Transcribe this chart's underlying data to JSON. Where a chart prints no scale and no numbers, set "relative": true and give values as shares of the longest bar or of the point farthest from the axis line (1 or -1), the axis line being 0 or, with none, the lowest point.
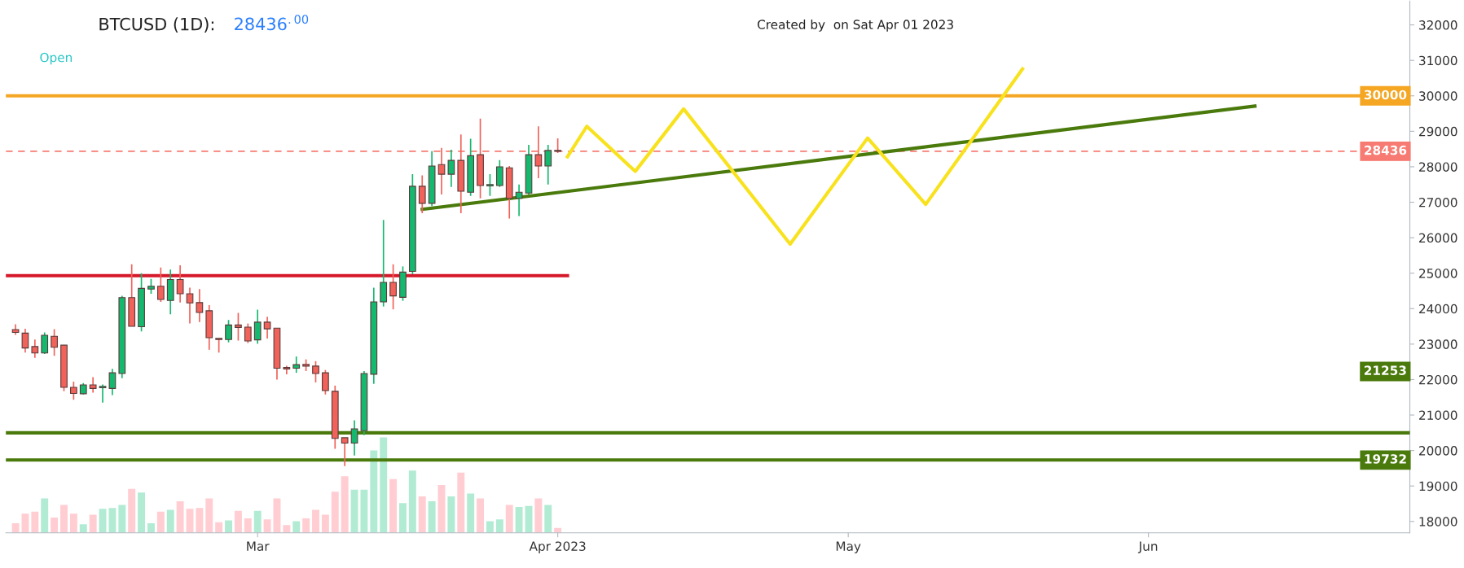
{
  "chart_data": [
    {
      "type": "candlestick",
      "title": "BTCUSD (1D):",
      "annotations": [
        "28436$^{.00}$",
        "Open",
        "Created by  on Sat Apr 01 2023",
        "21253"
      ],
      "xlim": [
        "2023-02-03",
        "2023-06-28"
      ],
      "xticks": [
        {
          "value": "2023-03-01",
          "label": "Mar"
        },
        {
          "value": "2023-04-01",
          "label": "Apr 2023"
        },
        {
          "value": "2023-05-01",
          "label": "May"
        },
        {
          "value": "2023-06-01",
          "label": "Jun"
        }
      ],
      "ylim": [
        17680,
        32670
      ],
      "yticks": [
        18000,
        19000,
        20000,
        21000,
        22000,
        23000,
        24000,
        25000,
        26000,
        27000,
        28000,
        29000,
        30000,
        31000,
        32000
      ],
      "grid": false,
      "legend": false,
      "ref_lines": [
        {
          "axis": "y",
          "value": 30000,
          "label": "30000",
          "color": "#f5a623",
          "line_style": "solid"
        },
        {
          "axis": "y",
          "value": 28436,
          "label": "28436",
          "color": "#f77b72",
          "line_style": "dashed"
        },
        {
          "axis": "y",
          "value": 20500,
          "color": "#4a7a0c",
          "line_style": "solid"
        },
        {
          "axis": "y",
          "value": 19732,
          "label": "19732",
          "color": "#4a7a0c",
          "line_style": "solid"
        }
      ],
      "series": [
        {
          "type": "candlestick",
          "x": [
            "2023-02-04",
            "2023-02-05",
            "2023-02-06",
            "2023-02-07",
            "2023-02-08",
            "2023-02-09",
            "2023-02-10",
            "2023-02-11",
            "2023-02-12",
            "2023-02-13",
            "2023-02-14",
            "2023-02-15",
            "2023-02-16",
            "2023-02-17",
            "2023-02-18",
            "2023-02-19",
            "2023-02-20",
            "2023-02-21",
            "2023-02-22",
            "2023-02-23",
            "2023-02-24",
            "2023-02-25",
            "2023-02-26",
            "2023-02-27",
            "2023-02-28",
            "2023-03-01",
            "2023-03-02",
            "2023-03-03",
            "2023-03-04",
            "2023-03-05",
            "2023-03-06",
            "2023-03-07",
            "2023-03-08",
            "2023-03-09",
            "2023-03-10",
            "2023-03-11",
            "2023-03-12",
            "2023-03-13",
            "2023-03-14",
            "2023-03-15",
            "2023-03-16",
            "2023-03-17",
            "2023-03-18",
            "2023-03-19",
            "2023-03-20",
            "2023-03-21",
            "2023-03-22",
            "2023-03-23",
            "2023-03-24",
            "2023-03-25",
            "2023-03-26",
            "2023-03-27",
            "2023-03-28",
            "2023-03-29",
            "2023-03-30",
            "2023-03-31",
            "2023-04-01"
          ],
          "ohlc": [
            [
              23410,
              23560,
              23260,
              23330
            ],
            [
              23310,
              23430,
              22760,
              22890
            ],
            [
              22930,
              23130,
              22610,
              22750
            ],
            [
              22750,
              23330,
              22720,
              23250
            ],
            [
              23220,
              23420,
              22670,
              22910
            ],
            [
              22970,
              22970,
              21670,
              21780
            ],
            [
              21780,
              21940,
              21430,
              21610
            ],
            [
              21600,
              21900,
              21580,
              21850
            ],
            [
              21850,
              22070,
              21630,
              21750
            ],
            [
              21770,
              21860,
              21350,
              21810
            ],
            [
              21750,
              22300,
              21560,
              22190
            ],
            [
              22170,
              24360,
              22040,
              24310
            ],
            [
              24310,
              25250,
              23500,
              23500
            ],
            [
              23490,
              25000,
              23360,
              24570
            ],
            [
              24550,
              24840,
              24420,
              24630
            ],
            [
              24630,
              25160,
              24190,
              24260
            ],
            [
              24230,
              25100,
              23840,
              24820
            ],
            [
              24820,
              25220,
              24170,
              24420
            ],
            [
              24420,
              24590,
              23580,
              24160
            ],
            [
              24170,
              24550,
              23620,
              23890
            ],
            [
              23940,
              24100,
              22840,
              23180
            ],
            [
              23160,
              23160,
              22760,
              23130
            ],
            [
              23130,
              23680,
              23050,
              23540
            ],
            [
              23540,
              23880,
              23100,
              23470
            ],
            [
              23480,
              23580,
              23030,
              23090
            ],
            [
              23120,
              23970,
              23010,
              23620
            ],
            [
              23620,
              23770,
              23160,
              23430
            ],
            [
              23450,
              23450,
              22000,
              22320
            ],
            [
              22340,
              22390,
              22150,
              22300
            ],
            [
              22320,
              22650,
              22190,
              22420
            ],
            [
              22430,
              22570,
              22240,
              22380
            ],
            [
              22380,
              22520,
              21920,
              22170
            ],
            [
              22190,
              22270,
              21580,
              21690
            ],
            [
              21670,
              21830,
              20050,
              20340
            ],
            [
              20360,
              20360,
              19560,
              20210
            ],
            [
              20210,
              20850,
              19860,
              20610
            ],
            [
              20560,
              22240,
              20430,
              22170
            ],
            [
              22150,
              24590,
              21880,
              24190
            ],
            [
              24190,
              26500,
              24060,
              24740
            ],
            [
              24740,
              25250,
              23980,
              24360
            ],
            [
              24320,
              25190,
              24220,
              25030
            ],
            [
              25050,
              27790,
              24970,
              27450
            ],
            [
              27450,
              27760,
              26690,
              26970
            ],
            [
              26970,
              28440,
              26890,
              28020
            ],
            [
              28060,
              28530,
              27220,
              27790
            ],
            [
              27790,
              28480,
              27430,
              28180
            ],
            [
              28180,
              28910,
              26690,
              27310
            ],
            [
              27280,
              28790,
              27180,
              28310
            ],
            [
              28340,
              29360,
              27110,
              27470
            ],
            [
              27460,
              27790,
              27180,
              27500
            ],
            [
              27470,
              28190,
              27430,
              28000
            ],
            [
              27970,
              28020,
              26540,
              27110
            ],
            [
              27110,
              27500,
              26610,
              27280
            ],
            [
              27260,
              28620,
              27220,
              28340
            ],
            [
              28340,
              29140,
              27680,
              28020
            ],
            [
              28020,
              28620,
              27500,
              28460
            ],
            [
              28460,
              28800,
              28390,
              28436
            ]
          ],
          "colors": [
            "#f0625a",
            "#f0625a",
            "#f0625a",
            "#14b86e",
            "#f0625a",
            "#f0625a",
            "#f0625a",
            "#14b86e",
            "#f0625a",
            "#14b86e",
            "#14b86e",
            "#14b86e",
            "#f0625a",
            "#14b86e",
            "#14b86e",
            "#f0625a",
            "#14b86e",
            "#f0625a",
            "#f0625a",
            "#f0625a",
            "#f0625a",
            "#f0625a",
            "#14b86e",
            "#f0625a",
            "#f0625a",
            "#14b86e",
            "#f0625a",
            "#f0625a",
            "#f0625a",
            "#14b86e",
            "#f0625a",
            "#f0625a",
            "#f0625a",
            "#f0625a",
            "#f0625a",
            "#14b86e",
            "#14b86e",
            "#14b86e",
            "#14b86e",
            "#f0625a",
            "#14b86e",
            "#14b86e",
            "#f0625a",
            "#14b86e",
            "#f0625a",
            "#14b86e",
            "#f0625a",
            "#14b86e",
            "#f0625a",
            "#14b86e",
            "#14b86e",
            "#f0625a",
            "#14b86e",
            "#14b86e",
            "#f0625a",
            "#14b86e",
            "#f0625a"
          ]
        },
        {
          "type": "line",
          "color": "#d6182b",
          "x": [
            "2023-02-03",
            "2023-04-02"
          ],
          "values": [
            24930,
            24930
          ]
        },
        {
          "type": "line",
          "color": "#4a7a0c",
          "x": [
            "2023-03-18",
            "2023-06-12"
          ],
          "values": [
            26800,
            29710
          ]
        },
        {
          "type": "line",
          "color": "#f8e21e",
          "x": [
            "2023-04-02",
            "2023-04-04",
            "2023-04-09",
            "2023-04-14",
            "2023-04-25",
            "2023-05-03",
            "2023-05-09",
            "2023-05-19"
          ],
          "values": [
            28280,
            29140,
            27870,
            29630,
            25820,
            28810,
            26940,
            30760
          ]
        }
      ]
    },
    {
      "type": "bar",
      "relative": true,
      "categories": [
        null,
        null,
        null,
        null,
        null,
        null,
        null,
        null,
        null,
        null,
        null,
        null,
        null,
        null,
        null,
        null,
        null,
        null,
        null,
        null,
        null,
        null,
        null,
        null,
        null,
        null,
        null,
        null,
        null,
        null,
        null,
        null,
        null,
        null,
        null,
        null,
        null,
        null,
        null,
        null,
        null,
        null,
        null,
        null,
        null,
        null,
        null,
        null,
        null,
        null,
        null,
        null,
        null,
        null,
        null,
        null,
        null
      ],
      "values": [
        0.1,
        0.2,
        0.22,
        0.36,
        0.16,
        0.29,
        0.2,
        0.09,
        0.19,
        0.25,
        0.26,
        0.29,
        0.46,
        0.42,
        0.1,
        0.22,
        0.24,
        0.33,
        0.25,
        0.26,
        0.36,
        0.11,
        0.13,
        0.23,
        0.15,
        0.23,
        0.14,
        0.36,
        0.08,
        0.12,
        0.15,
        0.24,
        0.19,
        0.43,
        0.59,
        0.45,
        0.45,
        0.86,
        1.0,
        0.56,
        0.31,
        0.65,
        0.38,
        0.33,
        0.5,
        0.38,
        0.63,
        0.41,
        0.36,
        0.12,
        0.14,
        0.29,
        0.27,
        0.28,
        0.36,
        0.29,
        0.05
      ],
      "colors": [
        "#ffcdd2",
        "#ffcdd2",
        "#ffcdd2",
        "#b2ebd4",
        "#ffcdd2",
        "#ffcdd2",
        "#ffcdd2",
        "#b2ebd4",
        "#ffcdd2",
        "#b2ebd4",
        "#b2ebd4",
        "#b2ebd4",
        "#ffcdd2",
        "#b2ebd4",
        "#b2ebd4",
        "#ffcdd2",
        "#b2ebd4",
        "#ffcdd2",
        "#ffcdd2",
        "#ffcdd2",
        "#ffcdd2",
        "#ffcdd2",
        "#b2ebd4",
        "#ffcdd2",
        "#ffcdd2",
        "#b2ebd4",
        "#ffcdd2",
        "#ffcdd2",
        "#ffcdd2",
        "#b2ebd4",
        "#ffcdd2",
        "#ffcdd2",
        "#ffcdd2",
        "#ffcdd2",
        "#ffcdd2",
        "#b2ebd4",
        "#b2ebd4",
        "#b2ebd4",
        "#b2ebd4",
        "#ffcdd2",
        "#b2ebd4",
        "#b2ebd4",
        "#ffcdd2",
        "#b2ebd4",
        "#ffcdd2",
        "#b2ebd4",
        "#ffcdd2",
        "#b2ebd4",
        "#ffcdd2",
        "#b2ebd4",
        "#b2ebd4",
        "#ffcdd2",
        "#b2ebd4",
        "#b2ebd4",
        "#ffcdd2",
        "#b2ebd4",
        "#ffcdd2"
      ]
    }
  ]
}
